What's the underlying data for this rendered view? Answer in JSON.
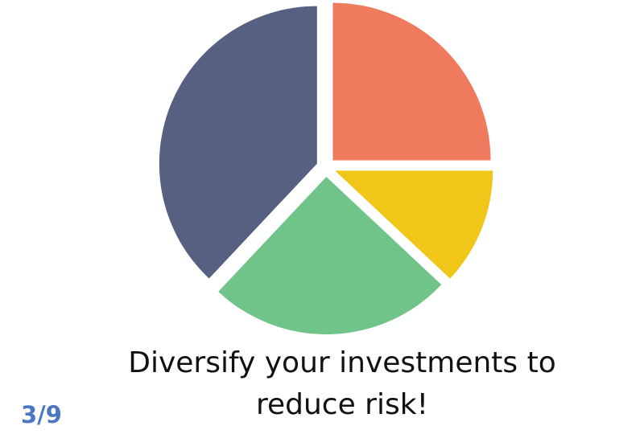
{
  "slide": {
    "caption_line1": "Diversify your investments to",
    "caption_line2": "reduce risk!",
    "page_counter": "3/9"
  },
  "chart_data": {
    "type": "pie",
    "title": "",
    "slices": [
      {
        "name": "",
        "value": 25,
        "color": "#ef7a5d"
      },
      {
        "name": "",
        "value": 12,
        "color": "#f0c619"
      },
      {
        "name": "",
        "value": 25,
        "color": "#71c489"
      },
      {
        "name": "",
        "value": 38,
        "color": "#566080"
      }
    ],
    "exploded": true,
    "start_angle": "12 o'clock",
    "direction": "clockwise",
    "labels_shown": false,
    "legend": "none"
  }
}
